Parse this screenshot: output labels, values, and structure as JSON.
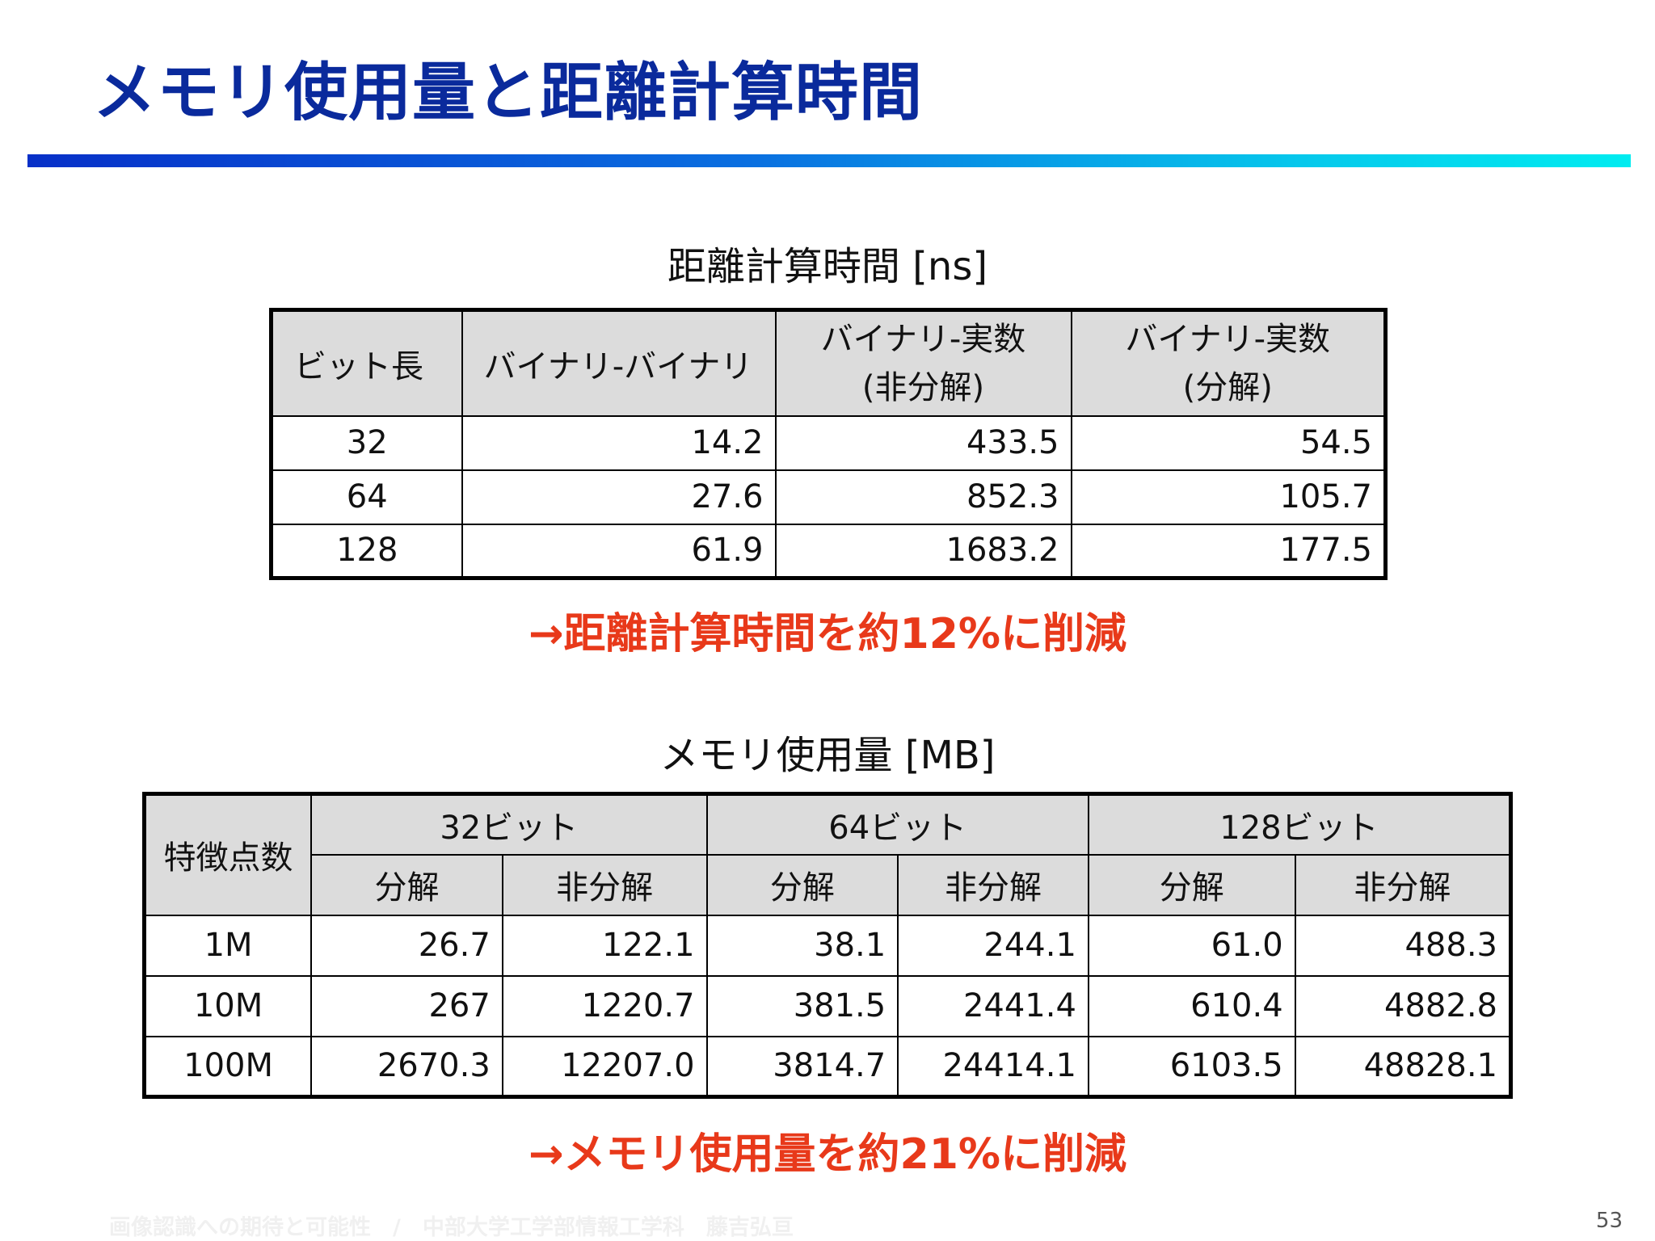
{
  "slide": {
    "title": "メモリ使用量と距離計算時間",
    "footer": "画像認識への期待と可能性　/　中部大学工学部情報工学科　藤吉弘亘",
    "page_number": "53"
  },
  "time_table": {
    "caption": "距離計算時間 [ns]",
    "headers": {
      "bit_length": "ビット長",
      "binary_binary": "バイナリ-バイナリ",
      "binary_real_nodecomp_1": "バイナリ-実数",
      "binary_real_nodecomp_2": "(非分解)",
      "binary_real_decomp_1": "バイナリ-実数",
      "binary_real_decomp_2": "(分解)"
    },
    "rows": [
      [
        "32",
        "14.2",
        "433.5",
        "54.5"
      ],
      [
        "64",
        "27.6",
        "852.3",
        "105.7"
      ],
      [
        "128",
        "61.9",
        "1683.2",
        "177.5"
      ]
    ],
    "note": "→距離計算時間を約12%に削減"
  },
  "memory_table": {
    "caption": "メモリ使用量 [MB]",
    "headers": {
      "feature_count": "特徴点数",
      "groups": [
        "32ビット",
        "64ビット",
        "128ビット"
      ],
      "decomp": "分解",
      "nodecomp": "非分解"
    },
    "rows": [
      [
        "1M",
        "26.7",
        "122.1",
        "38.1",
        "244.1",
        "61.0",
        "488.3"
      ],
      [
        "10M",
        "267",
        "1220.7",
        "381.5",
        "2441.4",
        "610.4",
        "4882.8"
      ],
      [
        "100M",
        "2670.3",
        "12207.0",
        "3814.7",
        "24414.1",
        "6103.5",
        "48828.1"
      ]
    ],
    "note": "→メモリ使用量を約21%に削減"
  },
  "colors": {
    "title": "#0a2a9c",
    "accent_note": "#e8391a",
    "header_fill": "#dcdcdc"
  }
}
